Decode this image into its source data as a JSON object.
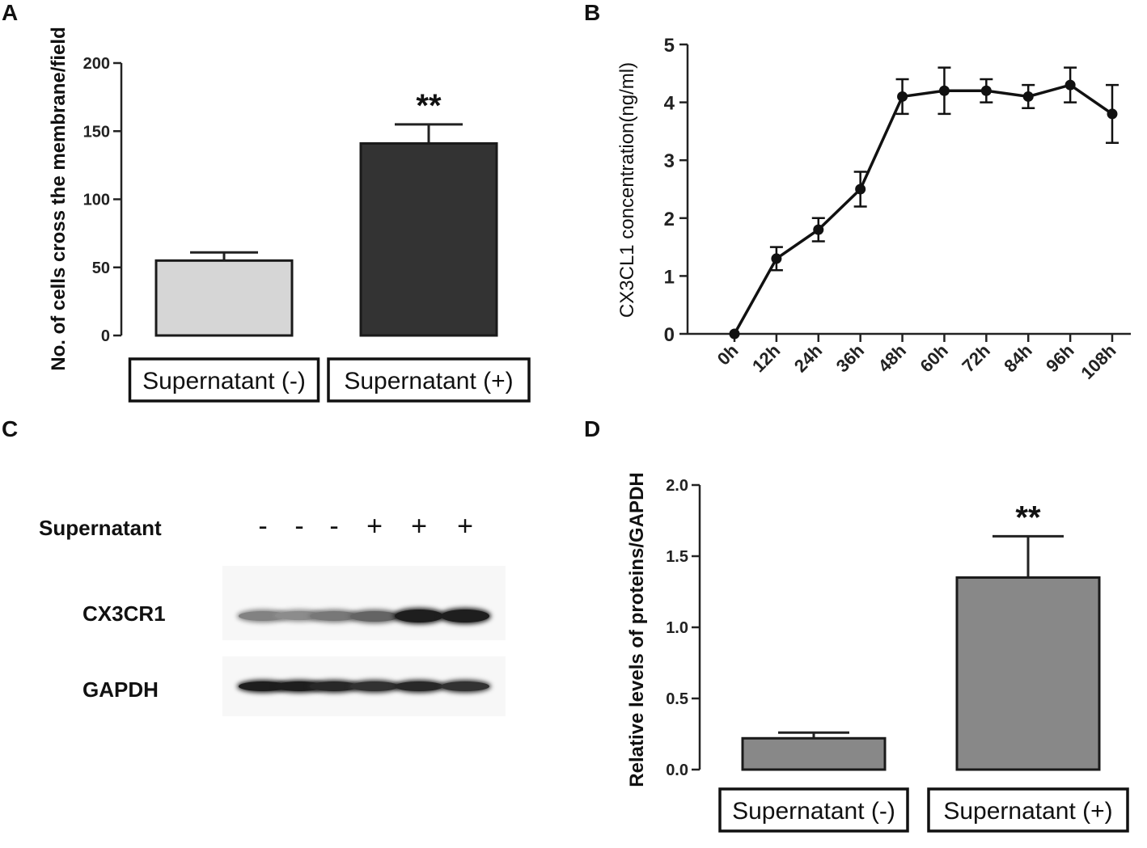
{
  "panels": {
    "a": {
      "letter": "A"
    },
    "b": {
      "letter": "B"
    },
    "c": {
      "letter": "C"
    },
    "d": {
      "letter": "D"
    }
  },
  "chart_data": [
    {
      "id": "A",
      "type": "bar",
      "ylabel": "No. of cells cross the membrane/field",
      "ylim": [
        0,
        200
      ],
      "yticks": [
        0,
        50,
        100,
        150,
        200
      ],
      "categories": [
        "Supernatant (-)",
        "Supernatant (+)"
      ],
      "values": [
        55,
        141
      ],
      "errors": [
        6,
        14
      ],
      "colors": [
        "#d6d6d6",
        "#333333"
      ],
      "annotation": {
        "text": "**",
        "category": "Supernatant (+)"
      }
    },
    {
      "id": "B",
      "type": "line",
      "ylabel": "CX3CL1 concentration(ng/ml)",
      "ylim": [
        0,
        5
      ],
      "yticks": [
        0,
        1,
        2,
        3,
        4,
        5
      ],
      "x": [
        "0h",
        "12h",
        "24h",
        "36h",
        "48h",
        "60h",
        "72h",
        "84h",
        "96h",
        "108h"
      ],
      "values": [
        0,
        1.3,
        1.8,
        2.5,
        4.1,
        4.2,
        4.2,
        4.1,
        4.3,
        3.8
      ],
      "errors": [
        0,
        0.2,
        0.2,
        0.3,
        0.3,
        0.4,
        0.2,
        0.2,
        0.3,
        0.5
      ]
    },
    {
      "id": "D",
      "type": "bar",
      "ylabel": "Relative levels of proteins/GAPDH",
      "ylim": [
        0,
        2.0
      ],
      "yticks": [
        0.0,
        0.5,
        1.0,
        1.5,
        2.0
      ],
      "categories": [
        "Supernatant (-)",
        "Supernatant (+)"
      ],
      "values": [
        0.22,
        1.35
      ],
      "errors": [
        0.04,
        0.29
      ],
      "colors": [
        "#888888",
        "#888888"
      ],
      "annotation": {
        "text": "**",
        "category": "Supernatant (+)"
      }
    }
  ],
  "western_blot": {
    "row_label": "Supernatant",
    "signs": [
      "-",
      "-",
      "-",
      "+",
      "+",
      "+"
    ],
    "proteins": [
      "CX3CR1",
      "GAPDH"
    ],
    "cx3cr1_intensity": [
      0.45,
      0.4,
      0.5,
      0.6,
      0.95,
      0.95
    ],
    "gapdh_intensity": [
      0.95,
      0.95,
      0.9,
      0.85,
      0.9,
      0.85
    ]
  }
}
